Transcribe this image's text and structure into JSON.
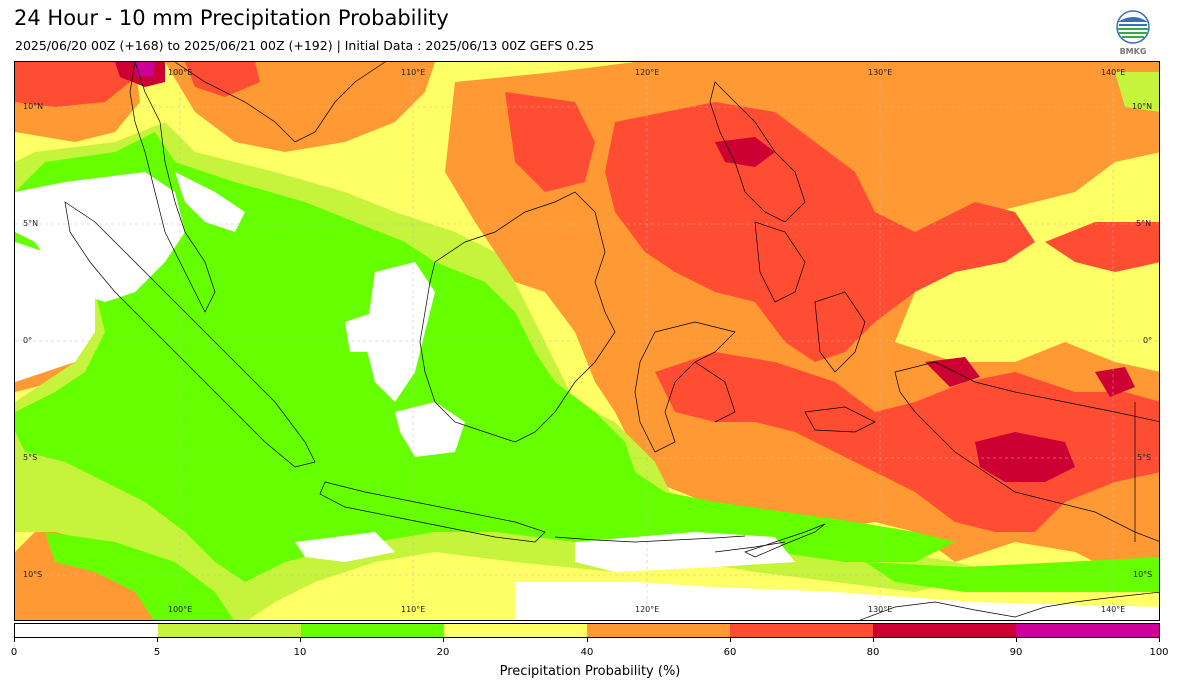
{
  "title": "24 Hour - 10 mm Precipitation Probability",
  "subtitle": "2025/06/20 00Z (+168) to 2025/06/21 00Z (+192) | Initial Data : 2025/06/13 00Z GEFS 0.25",
  "logo": {
    "text": "BMKG",
    "icon": "bmkg-logo-icon"
  },
  "map": {
    "longitude_labels": [
      "100°E",
      "110°E",
      "120°E",
      "130°E",
      "140°E"
    ],
    "latitude_labels_left": [
      "10°N",
      "5°N",
      "0°",
      "5°S",
      "10°S"
    ],
    "latitude_labels_right": [
      "10°N",
      "5°N",
      "0°",
      "5°S",
      "10°S"
    ]
  },
  "legend": {
    "label": "Precipitation Probability (%)",
    "ticks": [
      "0",
      "5",
      "10",
      "20",
      "40",
      "60",
      "80",
      "90",
      "100"
    ],
    "colors": [
      "#ffffff",
      "#c6f43c",
      "#66ff00",
      "#ffff66",
      "#ff9933",
      "#ff4d33",
      "#cc0033",
      "#cc0099"
    ]
  }
}
